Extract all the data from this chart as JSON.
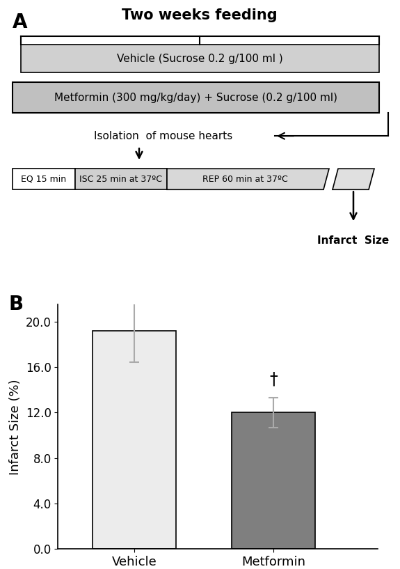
{
  "title_A": "Two weeks feeding",
  "label_A": "A",
  "label_B": "B",
  "box1_text": "Vehicle (Sucrose 0.2 g/100 ml )",
  "box2_text": "Metformin (300 mg/kg/day) + Sucrose (0.2 g/100 ml)",
  "isolation_text": "Isolation  of mouse hearts",
  "eq_text": "EQ 15 min",
  "isc_text": "ISC 25 min at 37ºC",
  "rep_text": "REP 60 min at 37ºC",
  "infarct_text": "Infarct  Size",
  "bar_values": [
    19.2,
    12.0
  ],
  "bar_errors": [
    2.8,
    1.3
  ],
  "bar_colors": [
    "#ececec",
    "#7f7f7f"
  ],
  "bar_edge_colors": [
    "#000000",
    "#000000"
  ],
  "categories": [
    "Vehicle",
    "Metformin"
  ],
  "ylabel": "Infarct Size (%)",
  "yticks": [
    0.0,
    4.0,
    8.0,
    12.0,
    16.0,
    20.0
  ],
  "ylim": [
    0,
    21.5
  ],
  "dagger_text": "†",
  "box1_fill": "#d0d0d0",
  "box2_fill": "#c0c0c0",
  "eq_fill": "#ffffff",
  "isc_fill": "#d0d0d0",
  "rep_fill": "#d8d8d8",
  "small_box_fill": "#e0e0e0",
  "error_color": "#aaaaaa"
}
